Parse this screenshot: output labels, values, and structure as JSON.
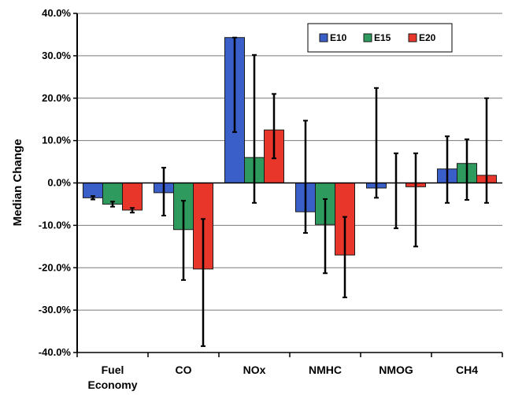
{
  "chart_data": {
    "type": "bar",
    "ylabel": "Median Change",
    "categories": [
      "Fuel Economy",
      "CO",
      "NOx",
      "NMHC",
      "NMOG",
      "CH4"
    ],
    "category_labels": [
      [
        "Fuel",
        "Economy"
      ],
      [
        "CO"
      ],
      [
        "NOx"
      ],
      [
        "NMHC"
      ],
      [
        "NMOG"
      ],
      [
        "CH4"
      ]
    ],
    "ylim": [
      -40,
      40
    ],
    "yticks": [
      40,
      30,
      20,
      10,
      0,
      -10,
      -20,
      -30,
      -40
    ],
    "ytick_labels": [
      "40.0%",
      "30.0%",
      "20.0%",
      "10.0%",
      "0.0%",
      "-10.0%",
      "-20.0%",
      "-30.0%",
      "-40.0%"
    ],
    "grid": true,
    "legend_position": "top-right",
    "series": [
      {
        "name": "E10",
        "color": "#3a5fc8",
        "values": [
          -3.5,
          -2.3,
          34.3,
          -6.8,
          -1.2,
          3.3
        ],
        "error_low": [
          -3.9,
          -7.7,
          12.0,
          -11.8,
          -3.5,
          -4.7
        ],
        "error_high": [
          -3.1,
          3.6,
          34.3,
          14.7,
          22.4,
          11.0
        ]
      },
      {
        "name": "E15",
        "color": "#2e9a5e",
        "values": [
          -5.0,
          -11.0,
          6.0,
          -9.8,
          0.0,
          4.6
        ],
        "error_low": [
          -5.6,
          -22.9,
          -4.7,
          -21.3,
          -10.7,
          -4.0
        ],
        "error_high": [
          -4.4,
          -4.2,
          30.2,
          -3.8,
          7.0,
          10.3
        ]
      },
      {
        "name": "E20",
        "color": "#e8362a",
        "values": [
          -6.4,
          -20.3,
          12.5,
          -17.0,
          -0.9,
          1.8
        ],
        "error_low": [
          -7.0,
          -38.5,
          5.8,
          -27.0,
          -15.0,
          -4.7
        ],
        "error_high": [
          -5.9,
          -8.5,
          21.0,
          -8.0,
          7.0,
          20.0
        ]
      }
    ]
  }
}
